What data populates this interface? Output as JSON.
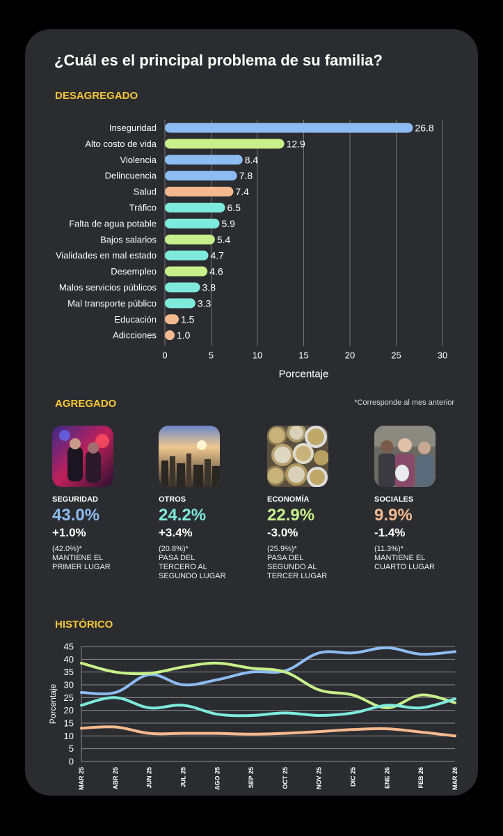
{
  "title": "¿Cuál es el principal problema de su familia?",
  "sections": {
    "desagregado": "DESAGREGADO",
    "agregado": "AGREGADO",
    "historico": "HISTÓRICO"
  },
  "note": "*Corresponde al mes anterior",
  "colors": {
    "seguridad": "#8dbcf2",
    "otros": "#7eeadc",
    "economia": "#c8f08a",
    "sociales": "#f5b98f"
  },
  "chart_data": [
    {
      "type": "bar",
      "orientation": "horizontal",
      "categories": [
        "Inseguridad",
        "Alto costo de vida",
        "Violencia",
        "Delincuencia",
        "Salud",
        "Tráfico",
        "Falta de agua potable",
        "Bajos salarios",
        "Vialidades en mal estado",
        "Desempleo",
        "Malos servicios públicos",
        "Mal transporte público",
        "Educación",
        "Adicciones"
      ],
      "values": [
        26.8,
        12.9,
        8.4,
        7.8,
        7.4,
        6.5,
        5.9,
        5.4,
        4.7,
        4.6,
        3.8,
        3.3,
        1.5,
        1.0
      ],
      "value_labels": [
        "26.8",
        "12.9",
        "8.4",
        "7.8",
        "7.4",
        "6.5",
        "5.9",
        "5.4",
        "4.7",
        "4.6",
        "3.8",
        "3.3",
        "1.5",
        "1.0"
      ],
      "bar_colors": [
        "#8dbcf2",
        "#c8f08a",
        "#8dbcf2",
        "#8dbcf2",
        "#f5b98f",
        "#7eeadc",
        "#7eeadc",
        "#c8f08a",
        "#7eeadc",
        "#c8f08a",
        "#7eeadc",
        "#7eeadc",
        "#f5b98f",
        "#f5b98f"
      ],
      "xlabel": "Porcentaje",
      "xlim": [
        0,
        30
      ],
      "xticks": [
        "0",
        "5",
        "10",
        "15",
        "20",
        "25",
        "30"
      ],
      "grid": true
    },
    {
      "type": "line",
      "x": [
        "MAR 25",
        "ABR 25",
        "JUN 25",
        "JUL 25",
        "AGO 25",
        "SEP 25",
        "OCT 25",
        "NOV 25",
        "DIC 25",
        "ENE 26",
        "FEB 26",
        "MAR 26"
      ],
      "series": [
        {
          "color": "#8dbcf2",
          "values": [
            27,
            27,
            34,
            30,
            32,
            35,
            35.5,
            42.5,
            42.5,
            44.5,
            42,
            43
          ]
        },
        {
          "color": "#c8f08a",
          "values": [
            38.5,
            35,
            34.5,
            37,
            38.5,
            36.5,
            35,
            28,
            26,
            21,
            26,
            23
          ]
        },
        {
          "color": "#7eeadc",
          "values": [
            22,
            25,
            21,
            22,
            18.5,
            18,
            19,
            18,
            19,
            22,
            21,
            24.5
          ]
        },
        {
          "color": "#f5b98f",
          "values": [
            13,
            13.5,
            11,
            11,
            11,
            10.7,
            11,
            11.7,
            12.5,
            12.8,
            11.5,
            10
          ]
        }
      ],
      "ylabel": "Porcentaje",
      "ylim": [
        0,
        45
      ],
      "yticks": [
        "0",
        "5",
        "10",
        "15",
        "20",
        "25",
        "30",
        "35",
        "40",
        "45"
      ],
      "grid": true
    }
  ],
  "agregado": [
    {
      "name": "SEGURIDAD",
      "pct": "43.0%",
      "change": "+1.0%",
      "prev": "(42.0%)*",
      "desc": "MANTIENE EL\nPRIMER LUGAR",
      "color": "#8dbcf2",
      "photo": "police-photo"
    },
    {
      "name": "OTROS",
      "pct": "24.2%",
      "change": "+3.4%",
      "prev": "(20.8%)*",
      "desc": "PASA DEL\nTERCERO AL\nSEGUNDO LUGAR",
      "color": "#7eeadc",
      "photo": "city-photo"
    },
    {
      "name": "ECONOMÍA",
      "pct": "22.9%",
      "change": "-3.0%",
      "prev": "(25.9%)*",
      "desc": "PASA DEL\nSEGUNDO AL\nTERCER LUGAR",
      "color": "#c8f08a",
      "photo": "coins-photo"
    },
    {
      "name": "SOCIALES",
      "pct": "9.9%",
      "change": "-1.4%",
      "prev": "(11.3%)*",
      "desc": "MANTIENE EL\nCUARTO LUGAR",
      "color": "#f5b98f",
      "photo": "crowd-photo"
    }
  ]
}
